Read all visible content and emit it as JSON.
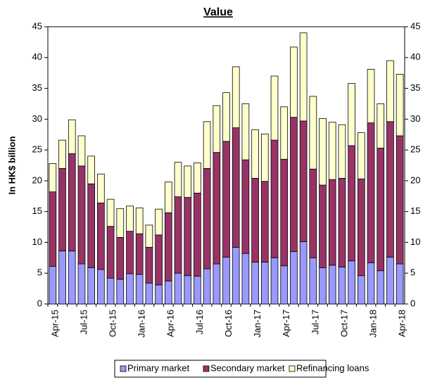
{
  "chart_data": {
    "type": "stacked-bar",
    "title": "Value",
    "y_label": "In HK$ billion",
    "categories": [
      "Apr-15",
      null,
      null,
      "Jul-15",
      null,
      null,
      "Oct-15",
      null,
      null,
      "Jan-16",
      null,
      null,
      "Apr-16",
      null,
      null,
      "Jul-16",
      null,
      null,
      "Oct-16",
      null,
      null,
      "Jan-17",
      null,
      null,
      "Apr-17",
      null,
      null,
      "Jul-17",
      null,
      null,
      "Oct-17",
      null,
      null,
      "Jan-18",
      null,
      null,
      "Apr-18"
    ],
    "series": [
      {
        "name": "Primary market",
        "color": "#9999ff",
        "values": [
          6.1,
          8.6,
          8.6,
          6.5,
          5.9,
          5.6,
          4.2,
          4.0,
          4.9,
          4.8,
          3.4,
          3.1,
          3.7,
          5.0,
          4.6,
          4.5,
          5.7,
          6.5,
          7.6,
          9.2,
          8.2,
          6.8,
          6.8,
          7.5,
          6.2,
          8.5,
          10.1,
          7.5,
          5.9,
          6.3,
          6.0,
          7.0,
          4.6,
          6.7,
          5.4,
          7.6,
          6.5
        ]
      },
      {
        "name": "Secondary market",
        "color": "#993366",
        "values": [
          12.1,
          13.4,
          15.8,
          15.9,
          13.6,
          10.8,
          8.4,
          6.8,
          6.9,
          6.6,
          5.8,
          8.1,
          11.1,
          12.4,
          12.7,
          13.5,
          16.3,
          18.1,
          18.8,
          19.4,
          15.2,
          13.6,
          13.1,
          19.1,
          17.3,
          21.8,
          19.6,
          14.4,
          13.4,
          13.9,
          14.4,
          18.7,
          15.7,
          22.7,
          19.9,
          22.0,
          20.8
        ]
      },
      {
        "name": "Refinancing loans",
        "color": "#ffffcc",
        "values": [
          4.6,
          4.6,
          5.5,
          4.9,
          4.5,
          4.7,
          4.4,
          4.7,
          4.1,
          4.2,
          3.6,
          4.2,
          5.0,
          5.6,
          5.1,
          4.9,
          7.6,
          7.6,
          7.9,
          9.9,
          9.1,
          7.9,
          7.7,
          10.4,
          8.5,
          11.4,
          14.3,
          11.8,
          10.8,
          9.3,
          8.7,
          10.1,
          7.5,
          8.7,
          7.2,
          9.9,
          10.0
        ]
      }
    ],
    "ylim": [
      0,
      45
    ],
    "yticks": [
      0,
      5,
      10,
      15,
      20,
      25,
      30,
      35,
      40,
      45
    ],
    "y2lim": [
      0,
      45
    ],
    "y2ticks": [
      0,
      5,
      10,
      15,
      20,
      25,
      30,
      35,
      40,
      45
    ],
    "legend": "bottom"
  }
}
